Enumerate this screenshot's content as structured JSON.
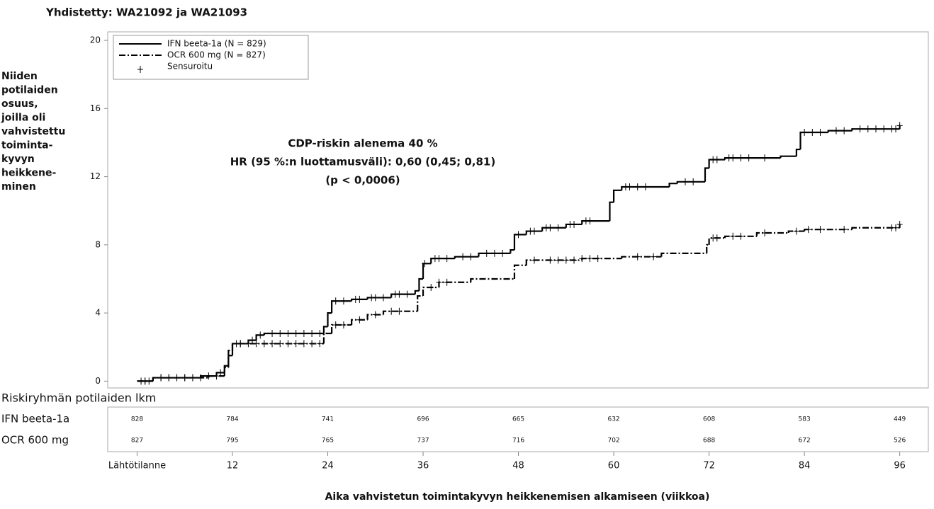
{
  "chart_data": {
    "type": "step",
    "title": "Yhdistetty: WA21092 ja WA21093",
    "y_label_lines": [
      "Niiden",
      "potilaiden",
      "osuus,",
      "joilla oli",
      "vahvistettu",
      "toiminta-",
      "kyvyn",
      "heikkene-",
      "minen"
    ],
    "x_label": "Aika vahvistetun toimintakyvyn heikkenemisen alkamiseen (viikkoa)",
    "annotation": [
      "CDP-riskin alenema 40 %",
      "HR (95 %:n luottamusväli): 0,60 (0,45; 0,81)",
      "(p < 0,0006)"
    ],
    "censor_label": "Sensuroitu",
    "legend": "upper left",
    "xlim": [
      -3.7,
      99.6
    ],
    "ylim": [
      -0.4,
      20.5
    ],
    "xticks": [
      {
        "value": 0,
        "label": "Lähtötilanne"
      },
      12,
      24,
      36,
      48,
      60,
      72,
      84,
      96
    ],
    "yticks": [
      0,
      4,
      8,
      12,
      16,
      20
    ],
    "series": [
      {
        "name": "IFN beeta-1a (N = 829)",
        "color": "#000000",
        "linestyle": "solid",
        "x": [
          0,
          2,
          8,
          10,
          11,
          11.5,
          12,
          14,
          15,
          16,
          23.5,
          24,
          24.5,
          27,
          29,
          32,
          35,
          35.5,
          36,
          37,
          40,
          43,
          47,
          47.5,
          49,
          51,
          54,
          56,
          59.5,
          60,
          61,
          67,
          68,
          71.5,
          72,
          74,
          81,
          83,
          83.5,
          87,
          90,
          96
        ],
        "values": [
          0,
          0.2,
          0.3,
          0.5,
          0.9,
          1.5,
          2.2,
          2.4,
          2.7,
          2.8,
          3.2,
          4.0,
          4.7,
          4.8,
          4.9,
          5.1,
          5.3,
          6.0,
          6.9,
          7.2,
          7.3,
          7.5,
          7.7,
          8.6,
          8.8,
          9.0,
          9.2,
          9.4,
          10.5,
          11.2,
          11.4,
          11.6,
          11.7,
          12.5,
          13.0,
          13.1,
          13.2,
          13.6,
          14.6,
          14.7,
          14.8,
          15.0
        ],
        "censored_x": [
          0.5,
          1,
          1.5,
          3,
          4,
          5,
          6,
          7,
          9,
          10.5,
          12.5,
          13,
          14.5,
          15.5,
          17,
          18,
          19,
          20,
          21,
          22,
          23,
          25,
          26,
          27.5,
          28,
          29.5,
          30,
          31,
          32.5,
          33,
          34,
          36.2,
          37.5,
          38,
          39,
          41,
          42,
          44,
          45,
          46,
          48,
          49.5,
          50,
          51.5,
          52,
          53,
          54.5,
          55,
          56.5,
          57,
          61.5,
          62,
          63,
          64,
          69,
          70,
          72.5,
          73,
          74.5,
          75,
          76,
          77,
          79,
          84,
          85,
          86,
          88,
          89,
          91,
          92,
          93,
          94,
          95,
          95.5,
          96
        ]
      },
      {
        "name": "OCR 600 mg (N = 827)",
        "color": "#000000",
        "linestyle": "dashdot",
        "x": [
          0,
          2,
          9,
          11,
          11.5,
          12,
          23.5,
          24.5,
          27,
          29,
          31,
          35.3,
          36,
          38,
          42,
          47.5,
          49,
          56,
          61,
          66,
          71.7,
          72,
          74,
          78,
          82,
          84,
          90,
          96
        ],
        "values": [
          0,
          0.2,
          0.3,
          0.8,
          1.8,
          2.2,
          2.8,
          3.3,
          3.6,
          3.9,
          4.1,
          5.0,
          5.5,
          5.8,
          6.0,
          6.8,
          7.1,
          7.2,
          7.3,
          7.5,
          8.0,
          8.4,
          8.5,
          8.7,
          8.8,
          8.9,
          9.0,
          9.2
        ],
        "censored_x": [
          1,
          3,
          4,
          5,
          6,
          7,
          8,
          10,
          13,
          14,
          15,
          16,
          17,
          18,
          19,
          20,
          21,
          22,
          23,
          25,
          26,
          28,
          30,
          32,
          33,
          37,
          38,
          39,
          50,
          52,
          53,
          54,
          55,
          56,
          57,
          58,
          63,
          65,
          72.5,
          73,
          75,
          76,
          79,
          83,
          84.5,
          86,
          89,
          95,
          95.5,
          96
        ]
      }
    ],
    "risk_table": {
      "title": "Riskiryhmän potilaiden lkm",
      "rows": [
        {
          "name": "IFN beeta-1a",
          "values": [
            828,
            784,
            741,
            696,
            665,
            632,
            608,
            583,
            449
          ]
        },
        {
          "name": "OCR 600 mg",
          "values": [
            827,
            795,
            765,
            737,
            716,
            702,
            688,
            672,
            526
          ]
        }
      ]
    }
  }
}
